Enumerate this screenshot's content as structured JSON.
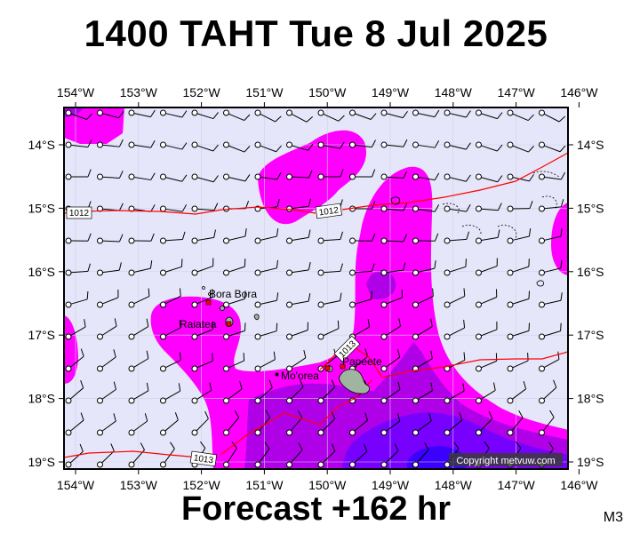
{
  "title": "1400 TAHT Tue 8 Jul 2025",
  "footer": "Forecast +162 hr",
  "model_code": "M3",
  "copyright": "Copyright metvuw.com",
  "lon_labels": [
    "154°W",
    "153°W",
    "152°W",
    "151°W",
    "150°W",
    "149°W",
    "148°W",
    "147°W",
    "146°W"
  ],
  "lat_labels": [
    "14°S",
    "15°S",
    "16°S",
    "17°S",
    "18°S",
    "19°S"
  ],
  "places": [
    {
      "name": "Bora Bora",
      "lon": -151.75,
      "lat": -16.5
    },
    {
      "name": "Raiatea",
      "lon": -151.45,
      "lat": -16.8
    },
    {
      "name": "Mo'orea",
      "lon": -149.83,
      "lat": -17.53
    },
    {
      "name": "Papeete",
      "lon": -149.57,
      "lat": -17.53
    }
  ],
  "isobar_labels": [
    "1012",
    "1012",
    "1013",
    "1013"
  ],
  "colors": {
    "background": "#e6e6fa",
    "rain_light": "#ff00ff",
    "rain_medium": "#b000e8",
    "rain_heavy": "#7800ff",
    "rain_very_heavy": "#3c00ff",
    "isobar": "#ff0000",
    "town_marker": "#ff0000"
  }
}
